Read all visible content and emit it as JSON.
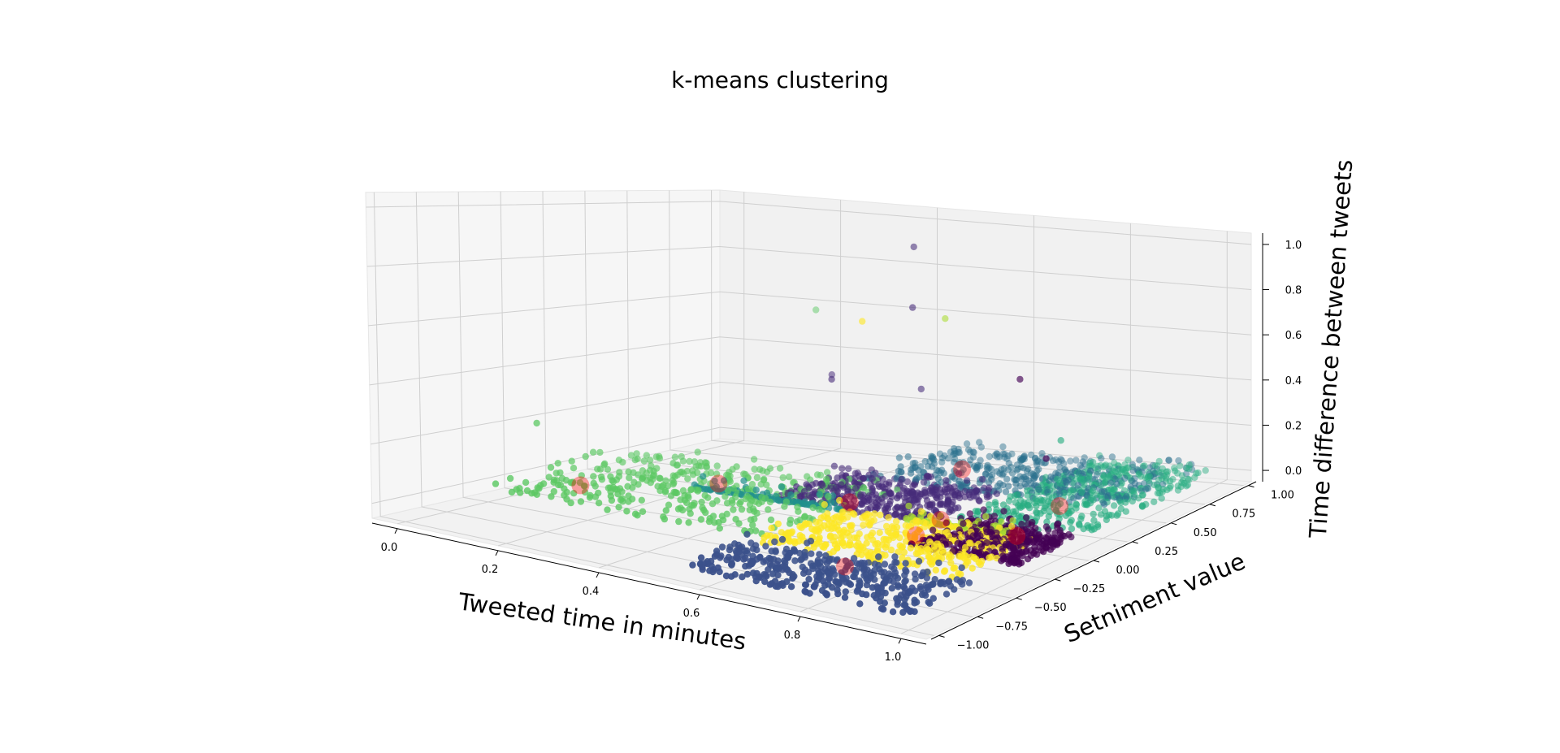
{
  "chart_data": {
    "type": "scatter",
    "projection": "3d",
    "title": "k-means clustering",
    "xlabel": "Tweeted time in minutes",
    "ylabel": "Setniment value",
    "zlabel": "Time difference between tweets",
    "xlim": [
      -0.05,
      1.05
    ],
    "ylim": [
      -1.05,
      1.05
    ],
    "zlim": [
      -0.05,
      1.05
    ],
    "xticks": [
      "0.0",
      "0.2",
      "0.4",
      "0.6",
      "0.8",
      "1.0"
    ],
    "yticks": [
      "−1.00",
      "−0.75",
      "−0.50",
      "−0.25",
      "0.00",
      "0.25",
      "0.50",
      "0.75",
      "1.00"
    ],
    "zticks": [
      "0.0",
      "0.2",
      "0.4",
      "0.6",
      "0.8",
      "1.0"
    ],
    "grid": true,
    "legend": "none",
    "colormap": "viridis",
    "clusters": [
      {
        "color": "#440154",
        "x_range": [
          0.78,
          1.0
        ],
        "y_range": [
          -0.3,
          0.1
        ]
      },
      {
        "color": "#472c7a",
        "x_range": [
          0.4,
          0.72
        ],
        "y_range": [
          0.0,
          0.5
        ]
      },
      {
        "color": "#3b518b",
        "x_range": [
          0.55,
          1.0
        ],
        "y_range": [
          -1.0,
          -0.55
        ]
      },
      {
        "color": "#2c718e",
        "x_range": [
          0.45,
          0.95
        ],
        "y_range": [
          0.45,
          1.0
        ]
      },
      {
        "color": "#21908d",
        "x_range": [
          0.25,
          0.55
        ],
        "y_range": [
          0.0,
          0.01
        ]
      },
      {
        "color": "#27ad81",
        "x_range": [
          0.75,
          1.0
        ],
        "y_range": [
          0.1,
          1.0
        ]
      },
      {
        "color": "#5cc863",
        "x_range": [
          0.0,
          0.55
        ],
        "y_range": [
          -0.5,
          0.4
        ]
      },
      {
        "color": "#aadc32",
        "x_range": [
          0.68,
          0.9
        ],
        "y_range": [
          0.0,
          0.01
        ]
      },
      {
        "color": "#fde725",
        "x_range": [
          0.55,
          0.95
        ],
        "y_range": [
          -0.55,
          0.0
        ]
      }
    ],
    "outliers": [
      {
        "x": 0.52,
        "y": 0.55,
        "z": 0.95,
        "color": "#472c7a"
      },
      {
        "x": 0.55,
        "y": 0.45,
        "z": 0.72,
        "color": "#472c7a"
      },
      {
        "x": 0.48,
        "y": 0.35,
        "z": 0.66,
        "color": "#fde725"
      },
      {
        "x": 0.6,
        "y": 0.5,
        "z": 0.68,
        "color": "#aadc32"
      },
      {
        "x": 0.2,
        "y": 0.9,
        "z": 0.58,
        "color": "#5cc863"
      },
      {
        "x": 0.85,
        "y": 0.2,
        "z": 0.55,
        "color": "#440154"
      },
      {
        "x": 0.4,
        "y": 0.4,
        "z": 0.4,
        "color": "#472c7a"
      },
      {
        "x": 0.55,
        "y": 0.5,
        "z": 0.38,
        "color": "#472c7a"
      },
      {
        "x": 0.9,
        "y": 0.3,
        "z": 0.3,
        "color": "#27ad81"
      },
      {
        "x": 0.95,
        "y": 0.05,
        "z": 0.3,
        "color": "#440154"
      },
      {
        "x": 0.3,
        "y": 0.7,
        "z": 0.35,
        "color": "#472c7a"
      },
      {
        "x": 0.0,
        "y": -0.2,
        "z": 0.2,
        "color": "#5cc863"
      }
    ],
    "centroids": [
      {
        "x": 0.12,
        "y": -0.3,
        "z": 0.02
      },
      {
        "x": 0.3,
        "y": 0.0,
        "z": 0.03
      },
      {
        "x": 0.6,
        "y": 0.6,
        "z": 0.04
      },
      {
        "x": 0.55,
        "y": 0.05,
        "z": 0.02
      },
      {
        "x": 0.78,
        "y": -0.7,
        "z": 0.02
      },
      {
        "x": 0.78,
        "y": -0.25,
        "z": 0.03
      },
      {
        "x": 0.88,
        "y": 0.35,
        "z": 0.02
      },
      {
        "x": 0.75,
        "y": 0.0,
        "z": 0.02
      },
      {
        "x": 0.92,
        "y": -0.05,
        "z": 0.02
      }
    ],
    "centroid_color": "#ff0000"
  }
}
